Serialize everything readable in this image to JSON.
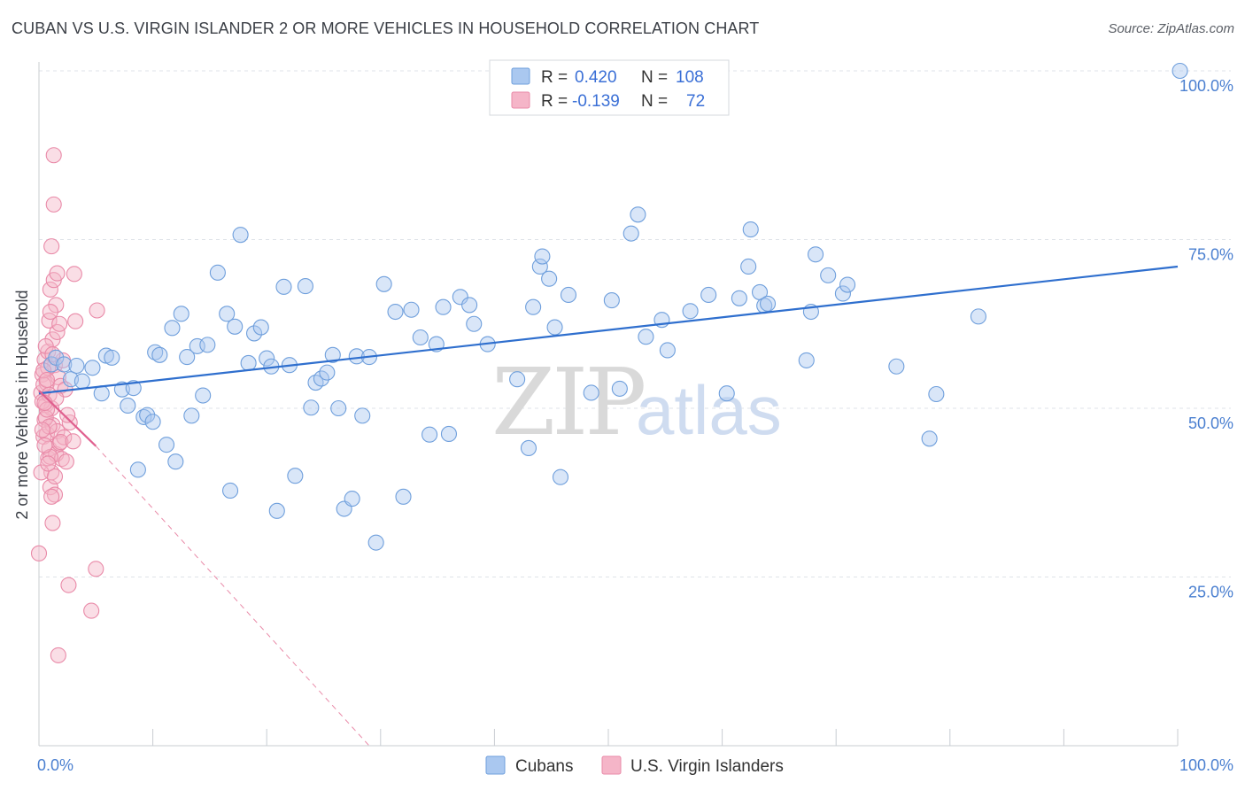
{
  "header": {
    "title": "CUBAN VS U.S. VIRGIN ISLANDER 2 OR MORE VEHICLES IN HOUSEHOLD CORRELATION CHART",
    "source": "Source: ZipAtlas.com"
  },
  "watermark": {
    "zip": "ZIP",
    "atlas": "atlas"
  },
  "colors": {
    "blue_fill": "#aac8f0",
    "blue_stroke": "#6f9fdc",
    "blue_line": "#2f6fce",
    "pink_fill": "#f5b5c8",
    "pink_stroke": "#e98aa8",
    "pink_line": "#e0608f",
    "tick_text": "#4a7fd0",
    "grid": "#dfe3e8"
  },
  "legend": {
    "rows": [
      {
        "r_label": "R =",
        "r_value": "0.420",
        "n_label": "N =",
        "n_value": "108"
      },
      {
        "r_label": "R =",
        "r_value": "-0.139",
        "n_label": "N =",
        "n_value": "72"
      }
    ]
  },
  "bottom_legend": {
    "items": [
      "Cubans",
      "U.S. Virgin Islanders"
    ]
  },
  "chart_data": {
    "type": "scatter",
    "ylabel": "2 or more Vehicles in Household",
    "xlabel": "",
    "xlim": [
      0,
      100
    ],
    "ylim": [
      0,
      100
    ],
    "x_tick_labels": [
      "0.0%",
      "100.0%"
    ],
    "y_tick_labels": [
      "25.0%",
      "50.0%",
      "75.0%",
      "100.0%"
    ],
    "y_ticks": [
      25,
      50,
      75,
      100
    ],
    "grid": true,
    "legend_position": "top-center",
    "series": [
      {
        "name": "Cubans",
        "trend": {
          "x0": 0,
          "y0": 52.2,
          "x1": 100,
          "y1": 71.0,
          "style": "solid"
        },
        "points": [
          [
            1.1,
            56.5
          ],
          [
            1.5,
            57.5
          ],
          [
            2.2,
            56.5
          ],
          [
            2.8,
            54.3
          ],
          [
            3.3,
            56.3
          ],
          [
            3.8,
            54.0
          ],
          [
            4.7,
            56.0
          ],
          [
            5.5,
            52.2
          ],
          [
            5.9,
            57.8
          ],
          [
            6.4,
            57.5
          ],
          [
            7.3,
            52.8
          ],
          [
            7.8,
            50.4
          ],
          [
            8.3,
            53.0
          ],
          [
            8.7,
            40.9
          ],
          [
            9.2,
            48.7
          ],
          [
            9.5,
            49.0
          ],
          [
            10.0,
            48.0
          ],
          [
            10.2,
            58.3
          ],
          [
            10.6,
            57.9
          ],
          [
            11.2,
            44.6
          ],
          [
            11.7,
            61.9
          ],
          [
            12.0,
            42.1
          ],
          [
            12.5,
            64.0
          ],
          [
            13.0,
            57.6
          ],
          [
            13.4,
            48.9
          ],
          [
            13.9,
            59.2
          ],
          [
            14.4,
            51.9
          ],
          [
            14.8,
            59.4
          ],
          [
            15.7,
            70.1
          ],
          [
            16.5,
            64.0
          ],
          [
            16.8,
            37.8
          ],
          [
            17.2,
            62.1
          ],
          [
            17.7,
            75.7
          ],
          [
            18.4,
            56.7
          ],
          [
            18.9,
            61.1
          ],
          [
            19.5,
            62.0
          ],
          [
            20.0,
            57.4
          ],
          [
            20.4,
            56.2
          ],
          [
            20.9,
            34.8
          ],
          [
            21.5,
            68.0
          ],
          [
            22.0,
            56.4
          ],
          [
            22.5,
            40.0
          ],
          [
            23.4,
            68.1
          ],
          [
            23.9,
            50.1
          ],
          [
            24.3,
            53.8
          ],
          [
            24.8,
            54.4
          ],
          [
            25.3,
            55.3
          ],
          [
            25.8,
            57.9
          ],
          [
            26.3,
            50.0
          ],
          [
            26.8,
            35.1
          ],
          [
            27.5,
            36.6
          ],
          [
            27.9,
            57.7
          ],
          [
            28.4,
            48.9
          ],
          [
            29.0,
            57.6
          ],
          [
            29.6,
            30.1
          ],
          [
            30.3,
            68.4
          ],
          [
            31.3,
            64.3
          ],
          [
            32.0,
            36.9
          ],
          [
            32.7,
            64.6
          ],
          [
            33.5,
            60.5
          ],
          [
            34.3,
            46.1
          ],
          [
            34.9,
            59.5
          ],
          [
            35.5,
            65.0
          ],
          [
            36.0,
            46.2
          ],
          [
            37.0,
            66.5
          ],
          [
            37.8,
            65.3
          ],
          [
            38.2,
            62.5
          ],
          [
            39.4,
            59.5
          ],
          [
            42.0,
            54.3
          ],
          [
            43.0,
            44.1
          ],
          [
            43.4,
            65.0
          ],
          [
            44.0,
            71.0
          ],
          [
            44.2,
            72.5
          ],
          [
            44.8,
            69.2
          ],
          [
            45.3,
            62.0
          ],
          [
            45.8,
            39.8
          ],
          [
            46.5,
            66.8
          ],
          [
            48.5,
            52.3
          ],
          [
            50.3,
            66.0
          ],
          [
            51.0,
            52.9
          ],
          [
            52.0,
            75.9
          ],
          [
            52.6,
            78.7
          ],
          [
            53.3,
            60.6
          ],
          [
            54.7,
            63.1
          ],
          [
            55.2,
            58.6
          ],
          [
            57.2,
            64.4
          ],
          [
            58.8,
            66.8
          ],
          [
            60.4,
            52.2
          ],
          [
            61.5,
            66.3
          ],
          [
            62.3,
            71.0
          ],
          [
            62.5,
            76.5
          ],
          [
            63.3,
            67.2
          ],
          [
            63.7,
            65.2
          ],
          [
            64.0,
            65.5
          ],
          [
            67.4,
            57.1
          ],
          [
            67.8,
            64.3
          ],
          [
            68.2,
            72.8
          ],
          [
            69.3,
            69.7
          ],
          [
            70.6,
            67.0
          ],
          [
            71.0,
            68.3
          ],
          [
            75.3,
            56.2
          ],
          [
            78.2,
            45.5
          ],
          [
            78.8,
            52.1
          ],
          [
            82.5,
            63.6
          ],
          [
            100.2,
            100.0
          ]
        ]
      },
      {
        "name": "U.S. Virgin Islanders",
        "trend": {
          "x0": 0,
          "y0": 52.6,
          "x1": 5.0,
          "y1": 44.4,
          "style": "solid",
          "extended_to": [
            29.0,
            0
          ],
          "extended_style": "dashed"
        },
        "points": [
          [
            0.0,
            28.5
          ],
          [
            0.2,
            52.3
          ],
          [
            0.3,
            55.0
          ],
          [
            0.4,
            45.8
          ],
          [
            0.5,
            57.2
          ],
          [
            0.5,
            48.3
          ],
          [
            0.6,
            50.5
          ],
          [
            0.7,
            53.7
          ],
          [
            0.7,
            46.2
          ],
          [
            0.8,
            58.4
          ],
          [
            0.8,
            42.6
          ],
          [
            0.9,
            63.0
          ],
          [
            0.9,
            44.0
          ],
          [
            1.0,
            67.6
          ],
          [
            1.0,
            38.3
          ],
          [
            1.1,
            74.0
          ],
          [
            1.1,
            40.5
          ],
          [
            1.1,
            50.0
          ],
          [
            1.2,
            47.5
          ],
          [
            1.2,
            60.2
          ],
          [
            1.3,
            80.2
          ],
          [
            1.3,
            69.0
          ],
          [
            1.4,
            56.4
          ],
          [
            1.4,
            37.2
          ],
          [
            1.5,
            65.3
          ],
          [
            1.5,
            43.2
          ],
          [
            1.6,
            61.3
          ],
          [
            1.6,
            46.6
          ],
          [
            1.7,
            13.4
          ],
          [
            1.7,
            54.6
          ],
          [
            1.8,
            44.8
          ],
          [
            1.9,
            53.3
          ],
          [
            2.0,
            42.5
          ],
          [
            2.1,
            57.1
          ],
          [
            2.2,
            45.7
          ],
          [
            2.3,
            52.8
          ],
          [
            2.4,
            42.1
          ],
          [
            2.6,
            23.8
          ],
          [
            2.7,
            47.9
          ],
          [
            0.3,
            51.0
          ],
          [
            0.4,
            53.5
          ],
          [
            0.6,
            48.6
          ],
          [
            0.8,
            56.0
          ],
          [
            0.9,
            52.0
          ],
          [
            1.0,
            42.8
          ],
          [
            1.2,
            33.0
          ],
          [
            1.3,
            87.5
          ],
          [
            0.5,
            44.5
          ],
          [
            0.7,
            49.8
          ],
          [
            1.6,
            70.0
          ],
          [
            1.8,
            62.5
          ],
          [
            0.2,
            40.5
          ],
          [
            0.6,
            59.2
          ],
          [
            1.1,
            36.9
          ],
          [
            1.4,
            39.9
          ],
          [
            0.9,
            47.3
          ],
          [
            0.4,
            55.6
          ],
          [
            1.5,
            51.5
          ],
          [
            0.3,
            46.8
          ],
          [
            0.8,
            41.8
          ],
          [
            1.0,
            64.3
          ],
          [
            1.2,
            58.0
          ],
          [
            1.9,
            45.0
          ],
          [
            2.5,
            49.0
          ],
          [
            3.0,
            45.1
          ],
          [
            3.1,
            69.9
          ],
          [
            3.2,
            62.9
          ],
          [
            4.6,
            20.0
          ],
          [
            5.0,
            26.2
          ],
          [
            5.1,
            64.5
          ],
          [
            0.5,
            50.8
          ],
          [
            0.7,
            54.2
          ]
        ]
      }
    ]
  }
}
